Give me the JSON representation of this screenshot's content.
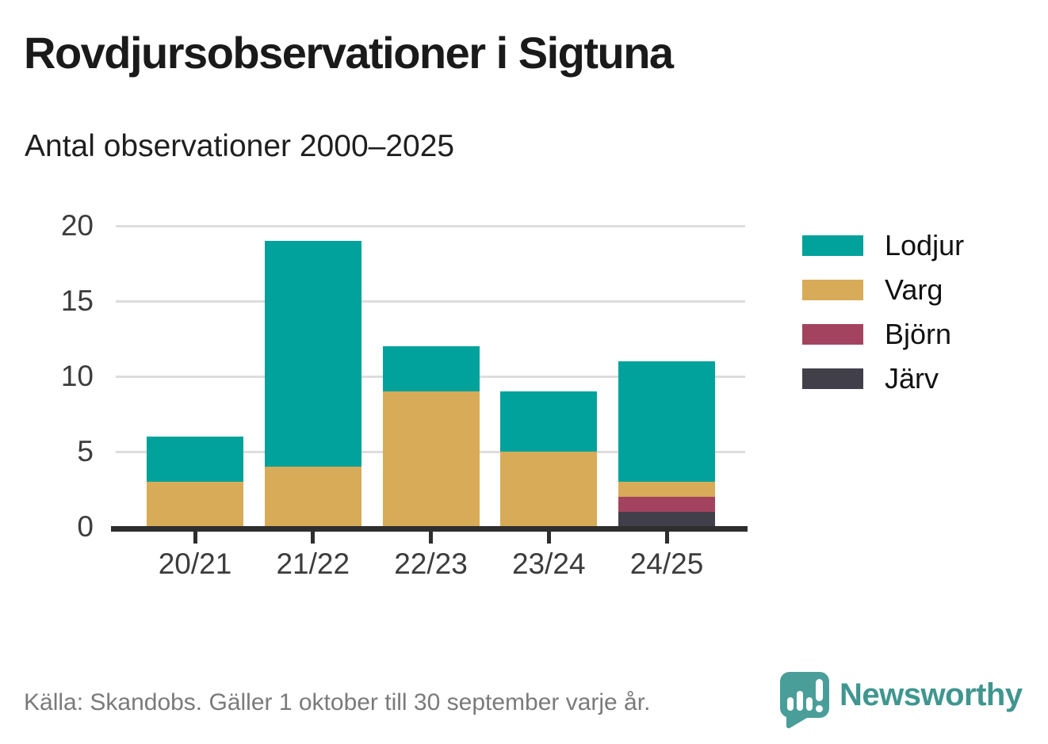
{
  "header": {
    "title": "Rovdjursobservationer i Sigtuna",
    "subtitle": "Antal observationer 2000–2025"
  },
  "chart_data": {
    "type": "bar",
    "stacked": true,
    "title": "Rovdjursobservationer i Sigtuna",
    "subtitle": "Antal observationer 2000–2025",
    "categories": [
      "20/21",
      "21/22",
      "22/23",
      "23/24",
      "24/25"
    ],
    "series": [
      {
        "name": "Lodjur",
        "color": "#00A29B",
        "values": [
          3,
          15,
          3,
          4,
          8
        ]
      },
      {
        "name": "Varg",
        "color": "#D8AB58",
        "values": [
          3,
          4,
          9,
          5,
          1
        ]
      },
      {
        "name": "Björn",
        "color": "#A4435F",
        "values": [
          0,
          0,
          0,
          0,
          1
        ]
      },
      {
        "name": "Järv",
        "color": "#413F4A",
        "values": [
          0,
          0,
          0,
          0,
          1
        ]
      }
    ],
    "stack_order_bottom_to_top": [
      "Järv",
      "Björn",
      "Varg",
      "Lodjur"
    ],
    "totals": [
      6,
      19,
      12,
      9,
      11
    ],
    "xlabel": "",
    "ylabel": "",
    "ylim": [
      0,
      20
    ],
    "yticks": [
      0,
      5,
      10,
      15,
      20
    ],
    "grid": "horizontal",
    "legend_position": "right"
  },
  "footer": {
    "source": "Källa: Skandobs. Gäller 1 oktober till 30 september varje år.",
    "logo_text": "Newsworthy"
  },
  "colors": {
    "background": "#FFFFFF",
    "grid": "#DDDDDD",
    "axis": "#2E2E2E",
    "text_dark": "#1A1A1A",
    "axis_text": "#3C3C3C",
    "footer_text": "#7A7A7A",
    "logo_teal": "#3F968F",
    "logo_icon": "#4A9E99"
  }
}
